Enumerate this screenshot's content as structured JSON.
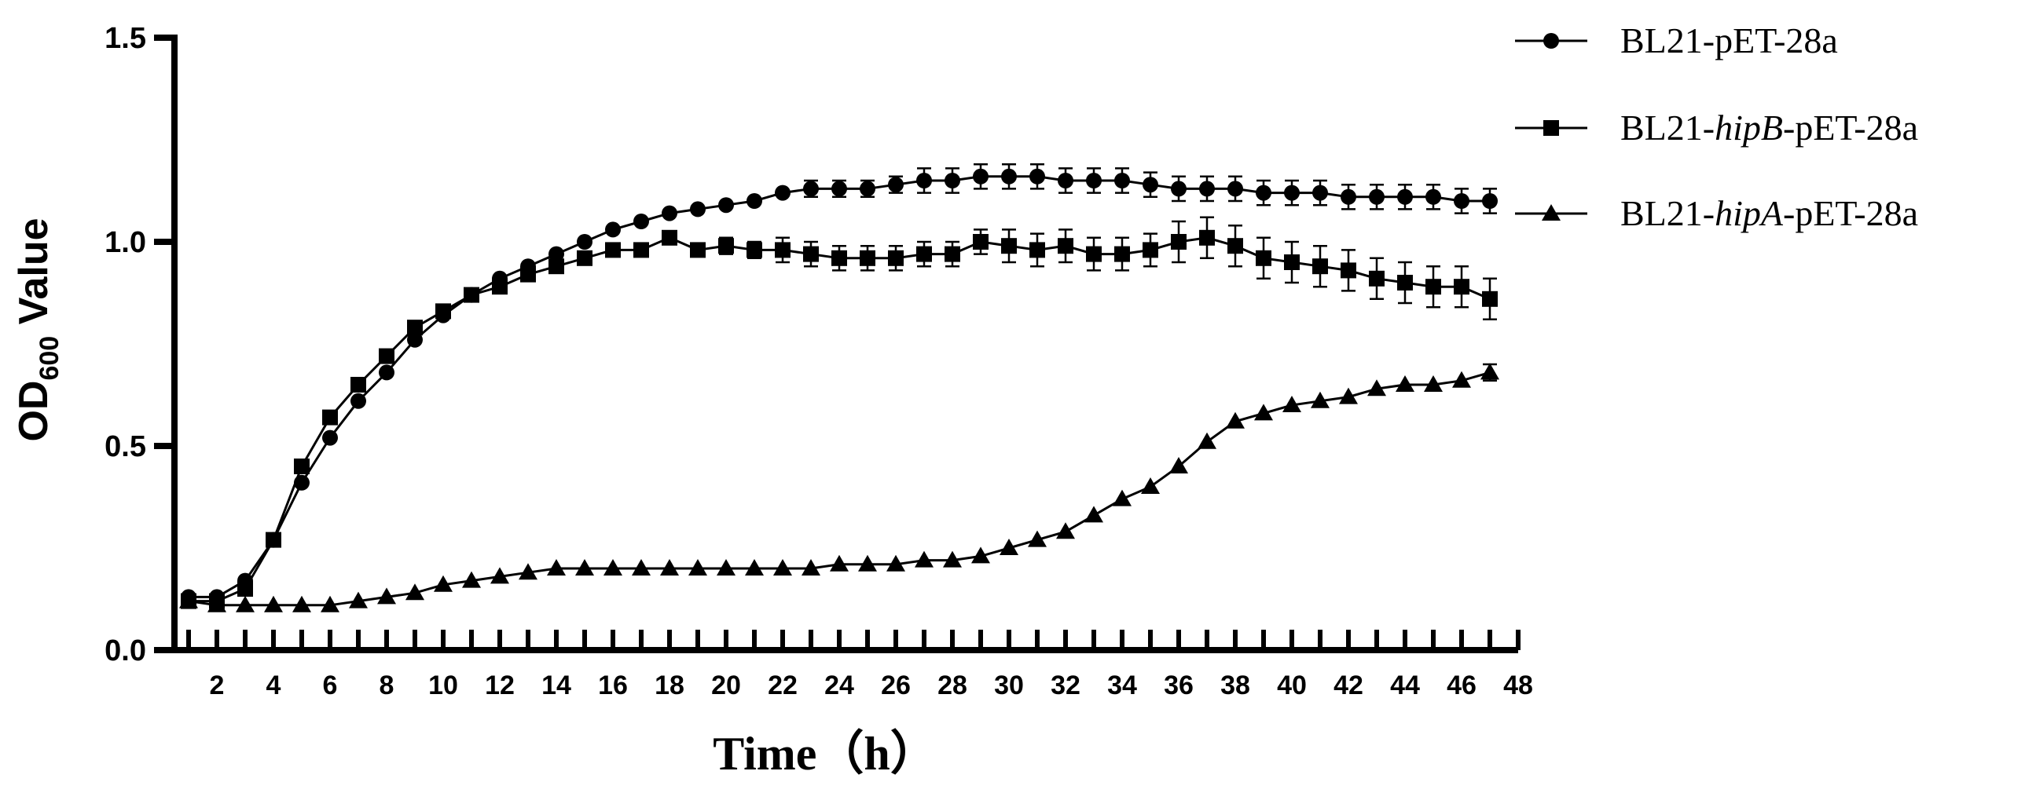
{
  "chart_data": {
    "type": "line",
    "title": "",
    "xlabel": "Time（h）",
    "ylabel": {
      "main": "OD",
      "subscript": "600",
      "suffix": " Value"
    },
    "xlim": [
      0.5,
      48
    ],
    "ylim": [
      0,
      1.5
    ],
    "x_ticks": [
      "2",
      "4",
      "6",
      "8",
      "10",
      "12",
      "14",
      "16",
      "18",
      "20",
      "22",
      "24",
      "26",
      "28",
      "30",
      "32",
      "34",
      "36",
      "38",
      "40",
      "42",
      "44",
      "46",
      "48"
    ],
    "y_ticks": [
      "0.0",
      "0.5",
      "1.0",
      "1.5"
    ],
    "legend_position": "top-right",
    "x": [
      1,
      2,
      3,
      4,
      5,
      6,
      7,
      8,
      9,
      10,
      11,
      12,
      13,
      14,
      15,
      16,
      17,
      18,
      19,
      20,
      21,
      22,
      23,
      24,
      25,
      26,
      27,
      28,
      29,
      30,
      31,
      32,
      33,
      34,
      35,
      36,
      37,
      38,
      39,
      40,
      41,
      42,
      43,
      44,
      45,
      46,
      47
    ],
    "series": [
      {
        "name_parts": {
          "prefix": "BL21-",
          "italic": "",
          "suffix": "pET-28a"
        },
        "marker": "circle",
        "values": [
          0.13,
          0.13,
          0.17,
          0.27,
          0.41,
          0.52,
          0.61,
          0.68,
          0.76,
          0.82,
          0.87,
          0.91,
          0.94,
          0.97,
          1.0,
          1.03,
          1.05,
          1.07,
          1.08,
          1.09,
          1.1,
          1.12,
          1.13,
          1.13,
          1.13,
          1.14,
          1.15,
          1.15,
          1.16,
          1.16,
          1.16,
          1.15,
          1.15,
          1.15,
          1.14,
          1.13,
          1.13,
          1.13,
          1.12,
          1.12,
          1.12,
          1.11,
          1.11,
          1.11,
          1.11,
          1.1,
          1.1
        ],
        "errors": [
          0,
          0,
          0,
          0,
          0,
          0,
          0,
          0,
          0,
          0,
          0,
          0,
          0,
          0,
          0,
          0,
          0,
          0,
          0,
          0,
          0,
          0,
          0.02,
          0.02,
          0.02,
          0.02,
          0.03,
          0.03,
          0.03,
          0.03,
          0.03,
          0.03,
          0.03,
          0.03,
          0.03,
          0.03,
          0.03,
          0.03,
          0.03,
          0.03,
          0.03,
          0.03,
          0.03,
          0.03,
          0.03,
          0.03,
          0.03
        ]
      },
      {
        "name_parts": {
          "prefix": "BL21-",
          "italic": "hipB",
          "suffix": "-pET-28a"
        },
        "marker": "square",
        "values": [
          0.12,
          0.12,
          0.15,
          0.27,
          0.45,
          0.57,
          0.65,
          0.72,
          0.79,
          0.83,
          0.87,
          0.89,
          0.92,
          0.94,
          0.96,
          0.98,
          0.98,
          1.01,
          0.98,
          0.99,
          0.98,
          0.98,
          0.97,
          0.96,
          0.96,
          0.96,
          0.97,
          0.97,
          1.0,
          0.99,
          0.98,
          0.99,
          0.97,
          0.97,
          0.98,
          1.0,
          1.01,
          0.99,
          0.96,
          0.95,
          0.94,
          0.93,
          0.91,
          0.9,
          0.89,
          0.89,
          0.86
        ],
        "errors": [
          0,
          0,
          0,
          0,
          0,
          0,
          0,
          0,
          0,
          0,
          0,
          0,
          0,
          0,
          0,
          0,
          0,
          0,
          0,
          0.02,
          0.02,
          0.03,
          0.03,
          0.03,
          0.03,
          0.03,
          0.03,
          0.03,
          0.03,
          0.04,
          0.04,
          0.04,
          0.04,
          0.04,
          0.04,
          0.05,
          0.05,
          0.05,
          0.05,
          0.05,
          0.05,
          0.05,
          0.05,
          0.05,
          0.05,
          0.05,
          0.05
        ]
      },
      {
        "name_parts": {
          "prefix": "BL21-",
          "italic": "hipA",
          "suffix": "-pET-28a"
        },
        "marker": "triangle",
        "values": [
          0.12,
          0.11,
          0.11,
          0.11,
          0.11,
          0.11,
          0.12,
          0.13,
          0.14,
          0.16,
          0.17,
          0.18,
          0.19,
          0.2,
          0.2,
          0.2,
          0.2,
          0.2,
          0.2,
          0.2,
          0.2,
          0.2,
          0.2,
          0.21,
          0.21,
          0.21,
          0.22,
          0.22,
          0.23,
          0.25,
          0.27,
          0.29,
          0.33,
          0.37,
          0.4,
          0.45,
          0.51,
          0.56,
          0.58,
          0.6,
          0.61,
          0.62,
          0.64,
          0.65,
          0.65,
          0.66,
          0.68
        ],
        "errors": [
          0,
          0,
          0,
          0,
          0,
          0,
          0,
          0,
          0,
          0,
          0,
          0,
          0,
          0,
          0,
          0,
          0,
          0,
          0,
          0,
          0,
          0,
          0,
          0,
          0,
          0,
          0,
          0,
          0,
          0,
          0,
          0,
          0,
          0,
          0,
          0,
          0,
          0,
          0,
          0,
          0,
          0,
          0,
          0,
          0,
          0,
          0.02
        ]
      }
    ]
  }
}
